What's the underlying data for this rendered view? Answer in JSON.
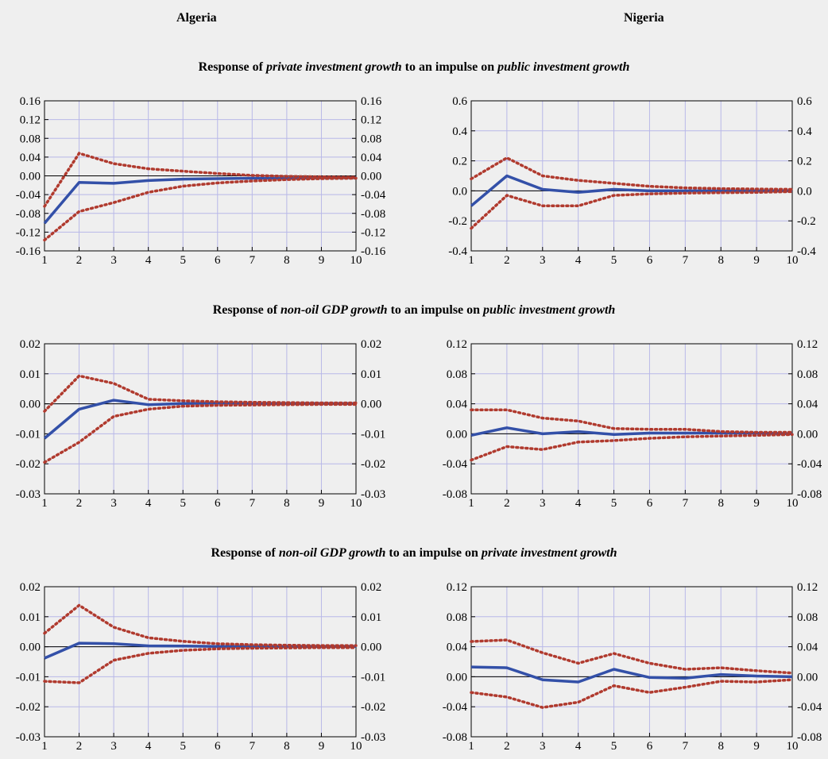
{
  "columns": [
    "Algeria",
    "Nigeria"
  ],
  "rows": [
    {
      "prefix": "Response of ",
      "var": "private investment growth",
      "mid": " to an impulse on ",
      "impulse": "public investment growth"
    },
    {
      "prefix": "Response of ",
      "var": "non-oil GDP growth",
      "mid": " to an impulse on ",
      "impulse": "public investment growth"
    },
    {
      "prefix": "Response of ",
      "var": "non-oil GDP growth",
      "mid": " to an impulse on ",
      "impulse": "private investment growth"
    }
  ],
  "colors": {
    "response": "#3350a8",
    "band": "#b03a2e",
    "grid": "#b8b8e8",
    "zero": "#000000"
  },
  "chart_data": [
    {
      "type": "line",
      "country": "Algeria",
      "row": 0,
      "x": [
        1,
        2,
        3,
        4,
        5,
        6,
        7,
        8,
        9,
        10
      ],
      "ylim": [
        -0.16,
        0.16
      ],
      "yticks": [
        "0.16",
        "0.12",
        "0.08",
        "0.04",
        "0.00",
        "-0.04",
        "-0.08",
        "-0.12",
        "-0.16"
      ],
      "series": [
        {
          "role": "response",
          "values": [
            -0.101,
            -0.014,
            -0.016,
            -0.01,
            -0.007,
            -0.006,
            -0.005,
            -0.005,
            -0.004,
            -0.004
          ]
        },
        {
          "role": "upper",
          "values": [
            -0.065,
            0.048,
            0.026,
            0.015,
            0.01,
            0.005,
            0.001,
            -0.001,
            -0.002,
            -0.003
          ]
        },
        {
          "role": "lower",
          "values": [
            -0.137,
            -0.076,
            -0.057,
            -0.035,
            -0.022,
            -0.015,
            -0.011,
            -0.008,
            -0.006,
            -0.005
          ]
        }
      ]
    },
    {
      "type": "line",
      "country": "Nigeria",
      "row": 0,
      "x": [
        1,
        2,
        3,
        4,
        5,
        6,
        7,
        8,
        9,
        10
      ],
      "ylim": [
        -0.4,
        0.6
      ],
      "yticks": [
        "0.6",
        "0.4",
        "0.2",
        "0.0",
        "-0.2",
        "-0.4"
      ],
      "series": [
        {
          "role": "response",
          "values": [
            -0.1,
            0.1,
            0.01,
            -0.01,
            0.01,
            0.0,
            0.0,
            0.0,
            0.0,
            0.0
          ]
        },
        {
          "role": "upper",
          "values": [
            0.08,
            0.22,
            0.1,
            0.07,
            0.05,
            0.03,
            0.02,
            0.015,
            0.012,
            0.01
          ]
        },
        {
          "role": "lower",
          "values": [
            -0.25,
            -0.03,
            -0.1,
            -0.1,
            -0.03,
            -0.02,
            -0.015,
            -0.012,
            -0.01,
            -0.005
          ]
        }
      ]
    },
    {
      "type": "line",
      "country": "Algeria",
      "row": 1,
      "x": [
        1,
        2,
        3,
        4,
        5,
        6,
        7,
        8,
        9,
        10
      ],
      "ylim": [
        -0.03,
        0.02
      ],
      "yticks": [
        "0.02",
        "0.01",
        "0.00",
        "-0.01",
        "-0.02",
        "-0.03"
      ],
      "series": [
        {
          "role": "response",
          "values": [
            -0.0115,
            -0.0018,
            0.0012,
            -0.0003,
            0.0001,
            0.0002,
            0.0001,
            0.0001,
            0.0001,
            0.0001
          ]
        },
        {
          "role": "upper",
          "values": [
            -0.0025,
            0.0093,
            0.0068,
            0.0015,
            0.001,
            0.0007,
            0.0005,
            0.0004,
            0.0003,
            0.0003
          ]
        },
        {
          "role": "lower",
          "values": [
            -0.0195,
            -0.0128,
            -0.0042,
            -0.0018,
            -0.0008,
            -0.0005,
            -0.0004,
            -0.0003,
            -0.0002,
            -0.0002
          ]
        }
      ]
    },
    {
      "type": "line",
      "country": "Nigeria",
      "row": 1,
      "x": [
        1,
        2,
        3,
        4,
        5,
        6,
        7,
        8,
        9,
        10
      ],
      "ylim": [
        -0.08,
        0.12
      ],
      "yticks": [
        "0.12",
        "0.08",
        "0.04",
        "0.00",
        "-0.04",
        "-0.08"
      ],
      "series": [
        {
          "role": "response",
          "values": [
            -0.002,
            0.008,
            0.0,
            0.003,
            -0.001,
            0.001,
            0.001,
            0.001,
            0.001,
            0.0
          ]
        },
        {
          "role": "upper",
          "values": [
            0.032,
            0.032,
            0.021,
            0.017,
            0.007,
            0.006,
            0.006,
            0.003,
            0.002,
            0.002
          ]
        },
        {
          "role": "lower",
          "values": [
            -0.035,
            -0.017,
            -0.021,
            -0.011,
            -0.009,
            -0.006,
            -0.004,
            -0.003,
            -0.002,
            -0.001
          ]
        }
      ]
    },
    {
      "type": "line",
      "country": "Algeria",
      "row": 2,
      "x": [
        1,
        2,
        3,
        4,
        5,
        6,
        7,
        8,
        9,
        10
      ],
      "ylim": [
        -0.03,
        0.02
      ],
      "yticks": [
        "0.02",
        "0.01",
        "0.00",
        "-0.01",
        "-0.02",
        "-0.03"
      ],
      "series": [
        {
          "role": "response",
          "values": [
            -0.0038,
            0.0012,
            0.001,
            0.0003,
            0.0002,
            0.0001,
            0.0001,
            0.0001,
            0.0001,
            0.0001
          ]
        },
        {
          "role": "upper",
          "values": [
            0.0045,
            0.0138,
            0.0065,
            0.003,
            0.0018,
            0.001,
            0.0007,
            0.0005,
            0.0004,
            0.0004
          ]
        },
        {
          "role": "lower",
          "values": [
            -0.0115,
            -0.012,
            -0.0045,
            -0.0022,
            -0.0012,
            -0.0007,
            -0.0005,
            -0.0004,
            -0.0003,
            -0.0003
          ]
        }
      ]
    },
    {
      "type": "line",
      "country": "Nigeria",
      "row": 2,
      "x": [
        1,
        2,
        3,
        4,
        5,
        6,
        7,
        8,
        9,
        10
      ],
      "ylim": [
        -0.08,
        0.12
      ],
      "yticks": [
        "0.12",
        "0.08",
        "0.04",
        "0.00",
        "-0.04",
        "-0.08"
      ],
      "series": [
        {
          "role": "response",
          "values": [
            0.013,
            0.012,
            -0.004,
            -0.007,
            0.01,
            -0.001,
            -0.002,
            0.003,
            0.001,
            0.0
          ]
        },
        {
          "role": "upper",
          "values": [
            0.047,
            0.049,
            0.032,
            0.018,
            0.031,
            0.018,
            0.01,
            0.012,
            0.008,
            0.005
          ]
        },
        {
          "role": "lower",
          "values": [
            -0.021,
            -0.027,
            -0.041,
            -0.034,
            -0.012,
            -0.021,
            -0.014,
            -0.006,
            -0.007,
            -0.004
          ]
        }
      ]
    }
  ]
}
